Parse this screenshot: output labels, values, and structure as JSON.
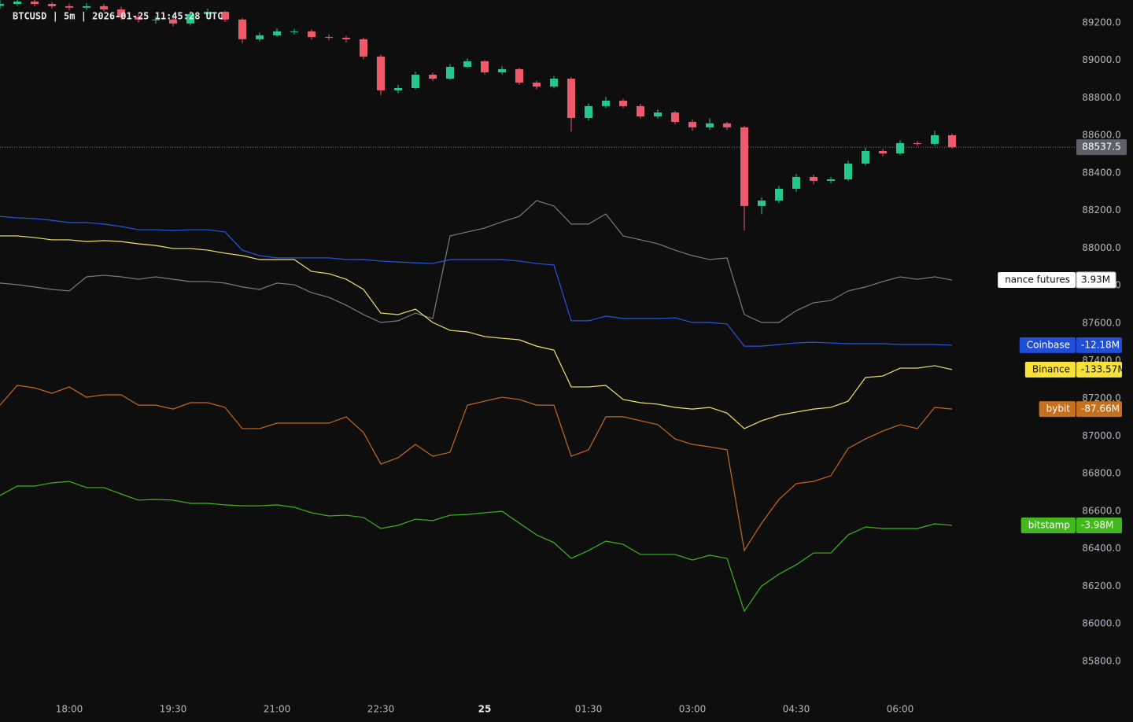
{
  "chart_data": {
    "type": "candlestick",
    "title": "BTCUSD | 5m | 2026-01-25 11:45:28 UTC",
    "x": [
      "17:00",
      "17:15",
      "17:30",
      "17:45",
      "18:00",
      "18:15",
      "18:30",
      "18:45",
      "19:00",
      "19:15",
      "19:30",
      "19:45",
      "20:00",
      "20:15",
      "20:30",
      "20:45",
      "21:00",
      "21:15",
      "21:30",
      "21:45",
      "22:00",
      "22:15",
      "22:30",
      "22:45",
      "23:00",
      "23:15",
      "23:30",
      "23:45",
      "00:00",
      "00:15",
      "00:30",
      "00:45",
      "01:00",
      "01:15",
      "01:30",
      "01:45",
      "02:00",
      "02:15",
      "02:30",
      "02:45",
      "03:00",
      "03:15",
      "03:30",
      "03:45",
      "04:00",
      "04:15",
      "04:30",
      "04:45",
      "05:00",
      "05:15",
      "05:30",
      "05:45",
      "06:00",
      "06:15",
      "06:30",
      "06:45"
    ],
    "open": [
      89290,
      89300,
      89313,
      89300,
      89288,
      89280,
      89288,
      89271,
      89229,
      89217,
      89217,
      89196,
      89246,
      89258,
      89217,
      89112,
      89133,
      89154,
      89154,
      89124,
      89120,
      89112,
      89020,
      88840,
      88852,
      88923,
      88902,
      88965,
      88995,
      88936,
      88953,
      88881,
      88860,
      88902,
      88693,
      88756,
      88785,
      88756,
      88701,
      88722,
      88672,
      88643,
      88664,
      88643,
      88224,
      88253,
      88316,
      88379,
      88358,
      88366,
      88450,
      88517,
      88504,
      88559,
      88555,
      88601
    ],
    "high": [
      89320,
      89330,
      89325,
      89310,
      89300,
      89305,
      89300,
      89285,
      89245,
      89235,
      89230,
      89260,
      89275,
      89265,
      89225,
      89148,
      89170,
      89168,
      89165,
      89138,
      89130,
      89120,
      89030,
      88870,
      88940,
      88935,
      88980,
      89010,
      89000,
      88968,
      88960,
      88892,
      88915,
      88910,
      88770,
      88805,
      88795,
      88768,
      88738,
      88730,
      88685,
      88690,
      88672,
      88650,
      88270,
      88330,
      88395,
      88392,
      88380,
      88465,
      88535,
      88528,
      88575,
      88570,
      88625,
      88610
    ],
    "low": [
      89275,
      89290,
      89288,
      89275,
      89265,
      89268,
      89258,
      89215,
      89200,
      89195,
      89180,
      89185,
      89235,
      89205,
      89090,
      89100,
      89125,
      89138,
      89110,
      89108,
      89095,
      89005,
      88815,
      88825,
      88845,
      88890,
      88895,
      88958,
      88925,
      88925,
      88870,
      88845,
      88850,
      88620,
      88680,
      88745,
      88745,
      88690,
      88690,
      88660,
      88625,
      88630,
      88630,
      88094,
      88180,
      88240,
      88300,
      88340,
      88345,
      88358,
      88440,
      88490,
      88495,
      88545,
      88545,
      88530
    ],
    "close": [
      89300,
      89313,
      89300,
      89288,
      89280,
      89288,
      89271,
      89229,
      89217,
      89217,
      89196,
      89246,
      89258,
      89217,
      89112,
      89133,
      89154,
      89154,
      89124,
      89120,
      89112,
      89020,
      88840,
      88852,
      88923,
      88902,
      88965,
      88995,
      88936,
      88953,
      88881,
      88860,
      88902,
      88693,
      88756,
      88785,
      88756,
      88701,
      88722,
      88672,
      88643,
      88664,
      88643,
      88224,
      88253,
      88316,
      88379,
      88358,
      88366,
      88450,
      88517,
      88504,
      88559,
      88555,
      88601,
      88537.5
    ],
    "up_color": "#22c98a",
    "down_color": "#ee5a6c",
    "last_price": 88537.5,
    "ylim": [
      85636,
      89321
    ],
    "yticks": [
      {
        "value": 85800,
        "label": "85800.0"
      },
      {
        "value": 86000,
        "label": "86000.0"
      },
      {
        "value": 86200,
        "label": "86200.0"
      },
      {
        "value": 86400,
        "label": "86400.0"
      },
      {
        "value": 86600,
        "label": "86600.0"
      },
      {
        "value": 86800,
        "label": "86800.0"
      },
      {
        "value": 87000,
        "label": "87000.0"
      },
      {
        "value": 87200,
        "label": "87200.0"
      },
      {
        "value": 87400,
        "label": "87400.0"
      },
      {
        "value": 87600,
        "label": "87600.0"
      },
      {
        "value": 87800,
        "label": "87800.0"
      },
      {
        "value": 88000,
        "label": "88000.0"
      },
      {
        "value": 88200,
        "label": "88200.0"
      },
      {
        "value": 88400,
        "label": "88400.0"
      },
      {
        "value": 88600,
        "label": "88600.0"
      },
      {
        "value": 88800,
        "label": "88800.0"
      },
      {
        "value": 89000,
        "label": "89000.0"
      },
      {
        "value": 89200,
        "label": "89200.0"
      }
    ],
    "xticks": [
      "18:00",
      "19:30",
      "21:00",
      "22:30",
      {
        "value": "00:00",
        "label": "25"
      },
      "01:30",
      "03:00",
      "04:30",
      "06:00"
    ],
    "grid": false,
    "series": [
      {
        "name": "nance futures",
        "color": "#7c7c7c",
        "tag_color": "#ffffff",
        "end_label": "3.93M",
        "values": [
          87814,
          87805,
          87793,
          87780,
          87772,
          87847,
          87855,
          87847,
          87834,
          87847,
          87834,
          87822,
          87822,
          87814,
          87793,
          87780,
          87814,
          87805,
          87763,
          87738,
          87696,
          87646,
          87604,
          87613,
          87654,
          87625,
          88065,
          88086,
          88107,
          88140,
          88169,
          88253,
          88224,
          88128,
          88128,
          88182,
          88065,
          88044,
          88023,
          87989,
          87960,
          87939,
          87948,
          87646,
          87604,
          87604,
          87667,
          87709,
          87721,
          87772,
          87793,
          87822,
          87847,
          87834,
          87847,
          87830
        ]
      },
      {
        "name": "Coinbase",
        "color": "#2456e0",
        "tag_color": "#1f4fd6",
        "end_label": "-12.18M",
        "values": [
          88169,
          88161,
          88157,
          88148,
          88136,
          88136,
          88128,
          88115,
          88098,
          88098,
          88094,
          88098,
          88098,
          88086,
          87989,
          87960,
          87948,
          87948,
          87948,
          87948,
          87939,
          87939,
          87931,
          87926,
          87922,
          87918,
          87939,
          87939,
          87939,
          87939,
          87931,
          87918,
          87910,
          87613,
          87613,
          87638,
          87625,
          87625,
          87625,
          87629,
          87604,
          87604,
          87596,
          87478,
          87478,
          87487,
          87495,
          87499,
          87495,
          87491,
          87491,
          87491,
          87487,
          87487,
          87487,
          87483
        ]
      },
      {
        "name": "Binance",
        "color": "#f3e26a",
        "tag_color": "#f7e23c",
        "end_label": "-133.57M",
        "values": [
          88065,
          88065,
          88056,
          88044,
          88044,
          88035,
          88040,
          88035,
          88023,
          88014,
          87998,
          87998,
          87989,
          87973,
          87960,
          87939,
          87939,
          87939,
          87876,
          87864,
          87834,
          87780,
          87654,
          87646,
          87675,
          87604,
          87562,
          87554,
          87529,
          87520,
          87512,
          87478,
          87457,
          87261,
          87261,
          87269,
          87194,
          87177,
          87169,
          87152,
          87143,
          87152,
          87122,
          87039,
          87081,
          87110,
          87127,
          87143,
          87152,
          87185,
          87311,
          87319,
          87361,
          87361,
          87374,
          87353
        ]
      },
      {
        "name": "bybit",
        "color": "#c8691c",
        "tag_color": "#c4701c",
        "end_label": "-87.66M",
        "values": [
          87164,
          87269,
          87256,
          87227,
          87261,
          87206,
          87219,
          87219,
          87164,
          87164,
          87143,
          87177,
          87177,
          87152,
          87039,
          87039,
          87068,
          87068,
          87068,
          87068,
          87102,
          87018,
          86850,
          86884,
          86955,
          86892,
          86913,
          87164,
          87185,
          87206,
          87194,
          87164,
          87164,
          86892,
          86926,
          87102,
          87102,
          87081,
          87060,
          86984,
          86955,
          86942,
          86926,
          86390,
          86536,
          86662,
          86746,
          86758,
          86788,
          86934,
          86984,
          87026,
          87060,
          87039,
          87152,
          87143
        ]
      },
      {
        "name": "bitstamp",
        "color": "#3db81b",
        "tag_color": "#43b71e",
        "end_label": "-3.98M",
        "values": [
          86683,
          86733,
          86733,
          86750,
          86758,
          86725,
          86725,
          86691,
          86658,
          86662,
          86658,
          86641,
          86641,
          86633,
          86628,
          86628,
          86633,
          86620,
          86591,
          86574,
          86578,
          86566,
          86507,
          86524,
          86557,
          86549,
          86578,
          86582,
          86591,
          86599,
          86536,
          86473,
          86432,
          86348,
          86390,
          86440,
          86423,
          86369,
          86369,
          86369,
          86339,
          86365,
          86348,
          86067,
          86201,
          86264,
          86314,
          86377,
          86377,
          86473,
          86515,
          86507,
          86507,
          86507,
          86532,
          86524
        ]
      }
    ]
  }
}
